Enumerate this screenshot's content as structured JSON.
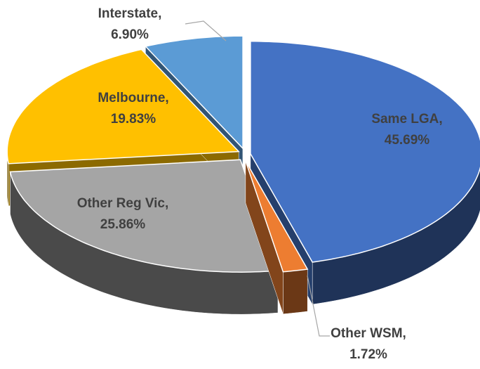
{
  "chart_data": {
    "type": "pie3d",
    "categories": [
      "Same LGA,",
      "Other WSM,",
      "Other Reg Vic,",
      "Melbourne,",
      "Interstate,"
    ],
    "values": [
      45.69,
      1.72,
      25.86,
      19.83,
      6.9
    ],
    "value_labels": [
      "45.69%",
      "1.72%",
      "25.86%",
      "19.83%",
      "6.90%"
    ],
    "colors": [
      "#4472c4",
      "#ed7d31",
      "#a5a5a5",
      "#ffc000",
      "#5b9bd5"
    ]
  }
}
